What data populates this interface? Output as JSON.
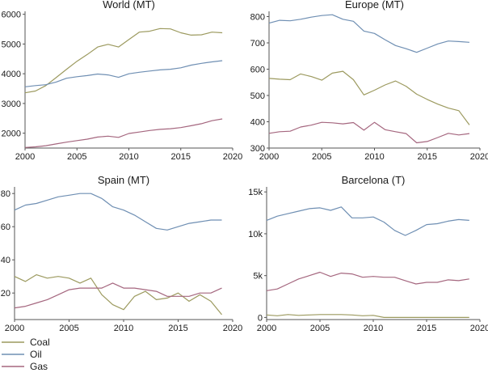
{
  "chart_data": [
    {
      "type": "line",
      "title": "World (MT)",
      "xlim": [
        2000,
        2020
      ],
      "ylim": [
        1500,
        6100
      ],
      "xticks": [
        2000,
        2005,
        2010,
        2015,
        2020
      ],
      "yticks": [
        2000,
        3000,
        4000,
        5000,
        6000
      ],
      "ytick_labels": [
        "2000",
        "3000",
        "4000",
        "5000",
        "6000"
      ],
      "x": [
        2000,
        2001,
        2002,
        2003,
        2004,
        2005,
        2006,
        2007,
        2008,
        2009,
        2010,
        2011,
        2012,
        2013,
        2014,
        2015,
        2016,
        2017,
        2018,
        2019
      ],
      "series": [
        {
          "name": "Coal",
          "values": [
            3360,
            3420,
            3600,
            3870,
            4150,
            4420,
            4650,
            4900,
            4990,
            4900,
            5150,
            5400,
            5430,
            5520,
            5510,
            5380,
            5300,
            5310,
            5400,
            5380
          ]
        },
        {
          "name": "Oil",
          "values": [
            3560,
            3600,
            3630,
            3720,
            3850,
            3900,
            3940,
            3990,
            3960,
            3880,
            4000,
            4050,
            4090,
            4130,
            4150,
            4200,
            4290,
            4350,
            4400,
            4440
          ]
        },
        {
          "name": "Gas",
          "values": [
            1520,
            1540,
            1580,
            1640,
            1700,
            1750,
            1800,
            1870,
            1900,
            1860,
            1990,
            2040,
            2090,
            2130,
            2150,
            2190,
            2250,
            2320,
            2420,
            2480
          ]
        }
      ]
    },
    {
      "type": "line",
      "title": "Europe (MT)",
      "xlim": [
        2000,
        2020
      ],
      "ylim": [
        300,
        820
      ],
      "xticks": [
        2000,
        2005,
        2010,
        2015,
        2020
      ],
      "yticks": [
        300,
        400,
        500,
        600,
        700,
        800
      ],
      "ytick_labels": [
        "300",
        "400",
        "500",
        "600",
        "700",
        "800"
      ],
      "x": [
        2000,
        2001,
        2002,
        2003,
        2004,
        2005,
        2006,
        2007,
        2008,
        2009,
        2010,
        2011,
        2012,
        2013,
        2014,
        2015,
        2016,
        2017,
        2018,
        2019
      ],
      "series": [
        {
          "name": "Coal",
          "values": [
            565,
            562,
            560,
            582,
            572,
            558,
            585,
            592,
            560,
            502,
            520,
            540,
            555,
            535,
            505,
            485,
            467,
            452,
            442,
            388
          ]
        },
        {
          "name": "Oil",
          "values": [
            775,
            786,
            784,
            790,
            798,
            804,
            807,
            790,
            782,
            745,
            736,
            712,
            690,
            678,
            664,
            680,
            696,
            707,
            705,
            702
          ]
        },
        {
          "name": "Gas",
          "values": [
            356,
            362,
            364,
            380,
            387,
            398,
            396,
            392,
            397,
            368,
            398,
            370,
            362,
            355,
            320,
            325,
            340,
            356,
            350,
            355
          ]
        }
      ]
    },
    {
      "type": "line",
      "title": "Spain (MT)",
      "xlim": [
        2000,
        2020
      ],
      "ylim": [
        4,
        84
      ],
      "xticks": [
        2000,
        2005,
        2010,
        2015,
        2020
      ],
      "yticks": [
        20,
        40,
        60,
        80
      ],
      "ytick_labels": [
        "20",
        "40",
        "60",
        "80"
      ],
      "x": [
        2000,
        2001,
        2002,
        2003,
        2004,
        2005,
        2006,
        2007,
        2008,
        2009,
        2010,
        2011,
        2012,
        2013,
        2014,
        2015,
        2016,
        2017,
        2018,
        2019
      ],
      "series": [
        {
          "name": "Coal",
          "values": [
            30,
            27,
            31,
            29,
            30,
            29,
            26,
            29,
            19,
            13,
            10,
            18,
            21,
            16,
            17,
            20,
            15,
            19,
            15,
            7
          ]
        },
        {
          "name": "Oil",
          "values": [
            70,
            73,
            74,
            76,
            78,
            79,
            80,
            80,
            77,
            72,
            70,
            67,
            63,
            59,
            58,
            60,
            62,
            63,
            64,
            64
          ]
        },
        {
          "name": "Gas",
          "values": [
            11,
            12,
            14,
            16,
            19,
            22,
            23,
            23,
            23,
            26,
            23,
            23,
            22,
            21,
            18,
            18,
            18,
            20,
            20,
            23
          ]
        }
      ]
    },
    {
      "type": "line",
      "title": "Barcelona (T)",
      "xlim": [
        2000,
        2020
      ],
      "ylim": [
        -250,
        15600
      ],
      "xticks": [
        2000,
        2005,
        2010,
        2015,
        2020
      ],
      "yticks": [
        0,
        5000,
        10000,
        15000
      ],
      "ytick_labels": [
        "0",
        "5k",
        "10k",
        "15k"
      ],
      "x": [
        2000,
        2001,
        2002,
        2003,
        2004,
        2005,
        2006,
        2007,
        2008,
        2009,
        2010,
        2011,
        2012,
        2013,
        2014,
        2015,
        2016,
        2017,
        2018,
        2019
      ],
      "series": [
        {
          "name": "Coal",
          "values": [
            300,
            200,
            350,
            250,
            300,
            350,
            350,
            350,
            300,
            200,
            250,
            0,
            0,
            0,
            0,
            0,
            0,
            0,
            0,
            0
          ]
        },
        {
          "name": "Oil",
          "values": [
            11600,
            12100,
            12400,
            12700,
            13000,
            13100,
            12800,
            13200,
            11900,
            11900,
            12000,
            11400,
            10400,
            9800,
            10400,
            11100,
            11200,
            11500,
            11700,
            11600
          ]
        },
        {
          "name": "Gas",
          "values": [
            3200,
            3400,
            4000,
            4600,
            5000,
            5400,
            4900,
            5300,
            5200,
            4800,
            4900,
            4800,
            4800,
            4400,
            4000,
            4200,
            4200,
            4500,
            4400,
            4600
          ]
        }
      ]
    }
  ],
  "legend": [
    {
      "name": "Coal",
      "color": "#9c9a5f"
    },
    {
      "name": "Oil",
      "color": "#6f8fb3"
    },
    {
      "name": "Gas",
      "color": "#a5677f"
    }
  ]
}
